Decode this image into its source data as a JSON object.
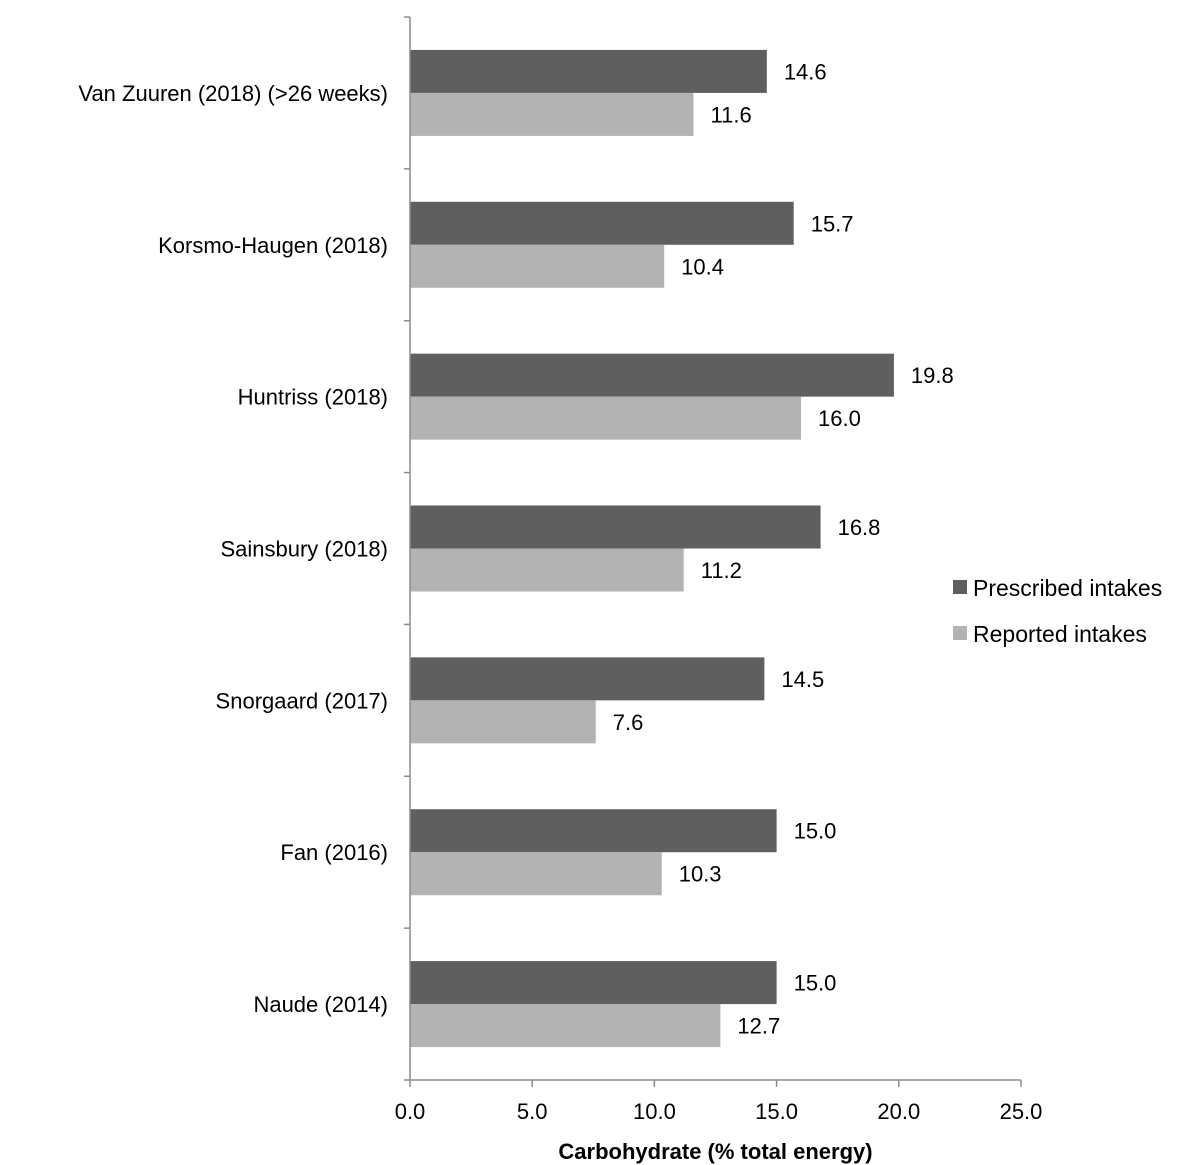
{
  "chart_data": {
    "type": "bar",
    "orientation": "horizontal",
    "categories": [
      "Van Zuuren (2018) (>26 weeks)",
      "Korsmo-Haugen (2018)",
      "Huntriss (2018)",
      "Sainsbury (2018)",
      "Snorgaard (2017)",
      "Fan (2016)",
      "Naude (2014)"
    ],
    "series": [
      {
        "name": "Prescribed intakes",
        "color": "#5f5f5f",
        "values": [
          14.6,
          15.7,
          19.8,
          16.8,
          14.5,
          15.0,
          15.0
        ],
        "labels": [
          "14.6",
          "15.7",
          "19.8",
          "16.8",
          "14.5",
          "15.0",
          "15.0"
        ]
      },
      {
        "name": "Reported intakes",
        "color": "#b3b3b3",
        "values": [
          11.6,
          10.4,
          16.0,
          11.2,
          7.6,
          10.3,
          12.7
        ],
        "labels": [
          "11.6",
          "10.4",
          "16.0",
          "11.2",
          "7.6",
          "10.3",
          "12.7"
        ]
      }
    ],
    "xlabel": "Carbohydrate (% total energy)",
    "xlim": [
      0,
      25
    ],
    "xticks": [
      0,
      5,
      10,
      15,
      20,
      25
    ],
    "xtick_labels": [
      "0.0",
      "5.0",
      "10.0",
      "15.0",
      "20.0",
      "25.0"
    ],
    "grid": false,
    "legend_position": "right"
  }
}
